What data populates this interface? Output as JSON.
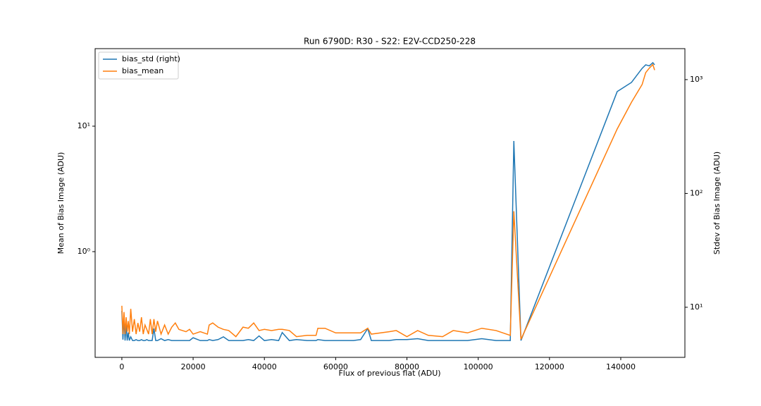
{
  "chart_data": {
    "type": "line",
    "title": "Run 6790D: R30 - S22: E2V-CCD250-228",
    "xlabel": "Flux of previous flat (ADU)",
    "ylabel": "Mean of Bias Image (ADU)",
    "y2label": "Stdev of Bias Image (ADU)",
    "x": [
      0,
      300,
      600,
      900,
      1200,
      1500,
      1800,
      2100,
      2500,
      3000,
      3500,
      4000,
      4500,
      5000,
      5500,
      6000,
      6500,
      7000,
      7500,
      8000,
      8500,
      9000,
      9500,
      10000,
      11000,
      12000,
      13000,
      14000,
      15000,
      16000,
      18000,
      19000,
      20000,
      22000,
      24000,
      24500,
      25500,
      27000,
      28500,
      30000,
      32000,
      34000,
      35500,
      37000,
      38500,
      40000,
      42000,
      44000,
      45000,
      47000,
      49000,
      52000,
      54500,
      55000,
      57000,
      60000,
      65000,
      67000,
      69000,
      70000,
      75000,
      77000,
      80000,
      83000,
      86000,
      90000,
      93000,
      97000,
      101000,
      105000,
      109000,
      110000,
      112000,
      139000,
      143000,
      146000,
      147000,
      148000,
      149000,
      149500
    ],
    "series": [
      {
        "name": "bias_std (right)",
        "color": "#1f77b4",
        "axis": "y2",
        "values": [
          9.3,
          5.2,
          8,
          5.1,
          7,
          5.1,
          6,
          5.1,
          5.5,
          5.1,
          5.1,
          5.2,
          5.1,
          5.1,
          5.2,
          5.1,
          5.1,
          5.2,
          5.1,
          5.1,
          5.1,
          6.5,
          5.1,
          5.1,
          5.3,
          5.1,
          5.2,
          5.1,
          5.1,
          5.1,
          5.1,
          5.1,
          5.4,
          5.1,
          5.1,
          5.2,
          5.1,
          5.2,
          5.5,
          5.1,
          5.1,
          5.1,
          5.2,
          5.1,
          5.6,
          5.1,
          5.2,
          5.1,
          6,
          5.1,
          5.2,
          5.1,
          5.1,
          5.2,
          5.1,
          5.1,
          5.1,
          5.2,
          6.5,
          5.1,
          5.1,
          5.2,
          5.2,
          5.3,
          5.1,
          5.1,
          5.1,
          5.1,
          5.3,
          5.1,
          5.1,
          289,
          5.1,
          785,
          944,
          1256,
          1349,
          1320,
          1408,
          1349
        ]
      },
      {
        "name": "bias_mean",
        "color": "#ff7f0e",
        "axis": "y",
        "values": [
          0.37,
          0.22,
          0.33,
          0.22,
          0.3,
          0.23,
          0.28,
          0.22,
          0.35,
          0.23,
          0.29,
          0.22,
          0.27,
          0.23,
          0.3,
          0.22,
          0.26,
          0.24,
          0.22,
          0.29,
          0.22,
          0.29,
          0.23,
          0.28,
          0.22,
          0.26,
          0.22,
          0.25,
          0.27,
          0.24,
          0.23,
          0.24,
          0.22,
          0.23,
          0.22,
          0.26,
          0.27,
          0.25,
          0.24,
          0.235,
          0.21,
          0.25,
          0.245,
          0.27,
          0.235,
          0.24,
          0.235,
          0.24,
          0.24,
          0.235,
          0.21,
          0.215,
          0.215,
          0.245,
          0.245,
          0.225,
          0.225,
          0.225,
          0.245,
          0.22,
          0.23,
          0.235,
          0.21,
          0.235,
          0.215,
          0.21,
          0.235,
          0.225,
          0.245,
          0.235,
          0.215,
          2.1,
          0.2,
          9.5,
          15.5,
          21.5,
          26.7,
          29,
          31,
          28
        ]
      }
    ],
    "xlim": [
      -7500,
      158000
    ],
    "xticks": [
      0,
      20000,
      40000,
      60000,
      80000,
      100000,
      120000,
      140000
    ],
    "ylim": [
      0.1436,
      41.5
    ],
    "yticks": [
      {
        "value": 1,
        "label": "10⁰"
      },
      {
        "value": 10,
        "label": "10¹"
      }
    ],
    "y2lim": [
      3.63,
      1871
    ],
    "y2ticks": [
      {
        "value": 10,
        "label": "10¹"
      },
      {
        "value": 100,
        "label": "10²"
      },
      {
        "value": 1000,
        "label": "10³"
      }
    ],
    "yscale": "log",
    "y2scale": "log",
    "legend": "upper left"
  }
}
